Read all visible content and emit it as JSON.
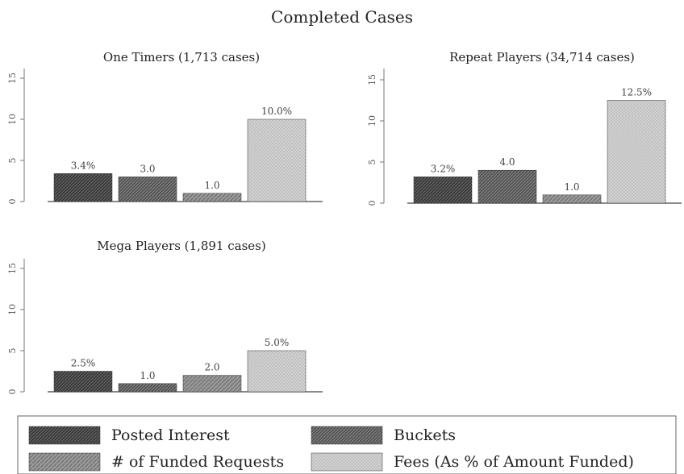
{
  "chart_data": {
    "type": "bar",
    "title": "Completed Cases",
    "ylim": [
      0,
      15
    ],
    "yticks": [
      0,
      5,
      10,
      15
    ],
    "categories": [
      "Posted Interest",
      "Buckets",
      "# of Funded Requests",
      "Fees (As % of Amount Funded)"
    ],
    "legend": {
      "placement": "bottom",
      "entries": [
        "Posted Interest",
        "Buckets",
        "# of Funded Requests",
        "Fees (As % of Amount Funded)"
      ]
    },
    "panels": [
      {
        "title": "One Timers (1,713 cases)",
        "values": [
          3.4,
          3.0,
          1.0,
          10.0
        ],
        "labels": [
          "3.4%",
          "3.0",
          "1.0",
          "10.0%"
        ]
      },
      {
        "title": "Repeat Players (34,714 cases)",
        "values": [
          3.2,
          4.0,
          1.0,
          12.5
        ],
        "labels": [
          "3.2%",
          "4.0",
          "1.0",
          "12.5%"
        ]
      },
      {
        "title": "Mega Players (1,891 cases)",
        "values": [
          2.5,
          1.0,
          2.0,
          5.0
        ],
        "labels": [
          "2.5%",
          "1.0",
          "2.0",
          "5.0%"
        ]
      }
    ]
  }
}
